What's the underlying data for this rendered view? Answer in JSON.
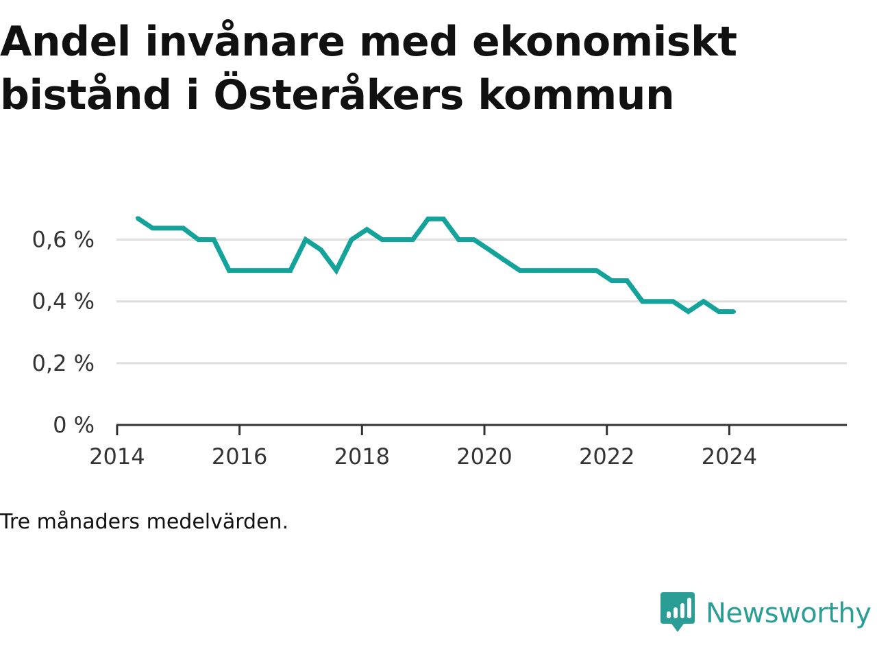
{
  "title": "Andel invånare med ekonomiskt bistånd i Österåkers kommun",
  "note": "Tre månaders medelvärden.",
  "brand": {
    "name": "Newsworthy",
    "icon": "bar-chart-speech-bubble-icon"
  },
  "colors": {
    "line": "#14a39a",
    "grid": "#dddddd",
    "axis": "#333333",
    "brand": "#2a9d95"
  },
  "chart_data": {
    "type": "line",
    "title": "Andel invånare med ekonomiskt bistånd i Österåkers kommun",
    "xlabel": "",
    "ylabel": "",
    "xlim": [
      2013.99,
      2025.92
    ],
    "ylim": [
      0,
      0.71
    ],
    "grid": true,
    "legend": "none",
    "x_ticks": [
      {
        "value": 2014,
        "label": "2014"
      },
      {
        "value": 2016,
        "label": "2016"
      },
      {
        "value": 2018,
        "label": "2018"
      },
      {
        "value": 2020,
        "label": "2020"
      },
      {
        "value": 2022,
        "label": "2022"
      },
      {
        "value": 2024,
        "label": "2024"
      }
    ],
    "y_ticks": [
      {
        "value": 0,
        "label": "0 %"
      },
      {
        "value": 0.2,
        "label": "0,2 %"
      },
      {
        "value": 0.4,
        "label": "0,4 %"
      },
      {
        "value": 0.6,
        "label": "0,6 %"
      }
    ],
    "series": [
      {
        "x": [
          2014.33,
          2014.58,
          2014.83,
          2015.08,
          2015.33,
          2015.58,
          2015.83,
          2016.08,
          2016.33,
          2016.58,
          2016.83,
          2017.08,
          2017.33,
          2017.58,
          2017.83,
          2018.08,
          2018.33,
          2018.58,
          2018.83,
          2019.08,
          2019.33,
          2019.58,
          2019.83,
          2020.08,
          2020.33,
          2020.58,
          2020.83,
          2021.08,
          2021.33,
          2021.58,
          2021.83,
          2022.08,
          2022.33,
          2022.58,
          2022.83,
          2023.08,
          2023.33,
          2023.58,
          2023.83,
          2024.08
        ],
        "values": [
          0.67,
          0.637,
          0.637,
          0.637,
          0.6,
          0.6,
          0.5,
          0.5,
          0.5,
          0.5,
          0.5,
          0.6,
          0.567,
          0.5,
          0.6,
          0.633,
          0.6,
          0.6,
          0.6,
          0.667,
          0.667,
          0.6,
          0.6,
          0.567,
          0.533,
          0.5,
          0.5,
          0.5,
          0.5,
          0.5,
          0.5,
          0.467,
          0.467,
          0.4,
          0.4,
          0.4,
          0.367,
          0.4,
          0.367,
          0.367
        ]
      }
    ]
  }
}
